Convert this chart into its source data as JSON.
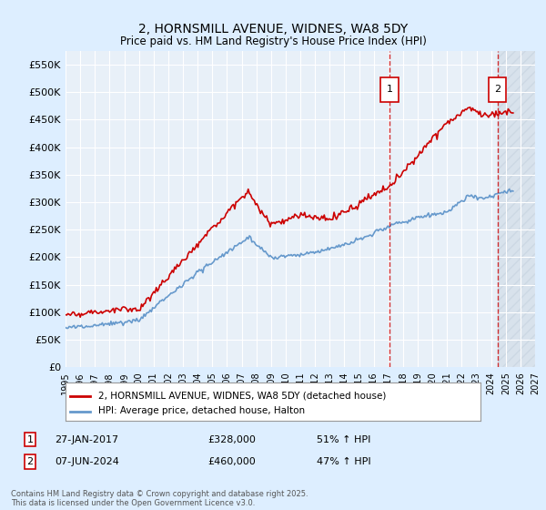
{
  "title": "2, HORNSMILL AVENUE, WIDNES, WA8 5DY",
  "subtitle": "Price paid vs. HM Land Registry's House Price Index (HPI)",
  "ylim": [
    0,
    575000
  ],
  "xlim_year": [
    1995,
    2027
  ],
  "yticks": [
    0,
    50000,
    100000,
    150000,
    200000,
    250000,
    300000,
    350000,
    400000,
    450000,
    500000,
    550000
  ],
  "ytick_labels": [
    "£0",
    "£50K",
    "£100K",
    "£150K",
    "£200K",
    "£250K",
    "£300K",
    "£350K",
    "£400K",
    "£450K",
    "£500K",
    "£550K"
  ],
  "xticks": [
    1995,
    1996,
    1997,
    1998,
    1999,
    2000,
    2001,
    2002,
    2003,
    2004,
    2005,
    2006,
    2007,
    2008,
    2009,
    2010,
    2011,
    2012,
    2013,
    2014,
    2015,
    2016,
    2017,
    2018,
    2019,
    2020,
    2021,
    2022,
    2023,
    2024,
    2025,
    2026,
    2027
  ],
  "sale1_year": 2017.07,
  "sale1_price": 328000,
  "sale1_label": "1",
  "sale1_date": "27-JAN-2017",
  "sale1_hpi": "51% ↑ HPI",
  "sale2_year": 2024.44,
  "sale2_price": 460000,
  "sale2_label": "2",
  "sale2_date": "07-JUN-2024",
  "sale2_hpi": "47% ↑ HPI",
  "red_line_color": "#cc0000",
  "blue_line_color": "#6699cc",
  "background_color": "#ddeeff",
  "plot_bg_color": "#e8f0f8",
  "grid_color": "#ffffff",
  "legend_label_red": "2, HORNSMILL AVENUE, WIDNES, WA8 5DY (detached house)",
  "legend_label_blue": "HPI: Average price, detached house, Halton",
  "footnote": "Contains HM Land Registry data © Crown copyright and database right 2025.\nThis data is licensed under the Open Government Licence v3.0."
}
